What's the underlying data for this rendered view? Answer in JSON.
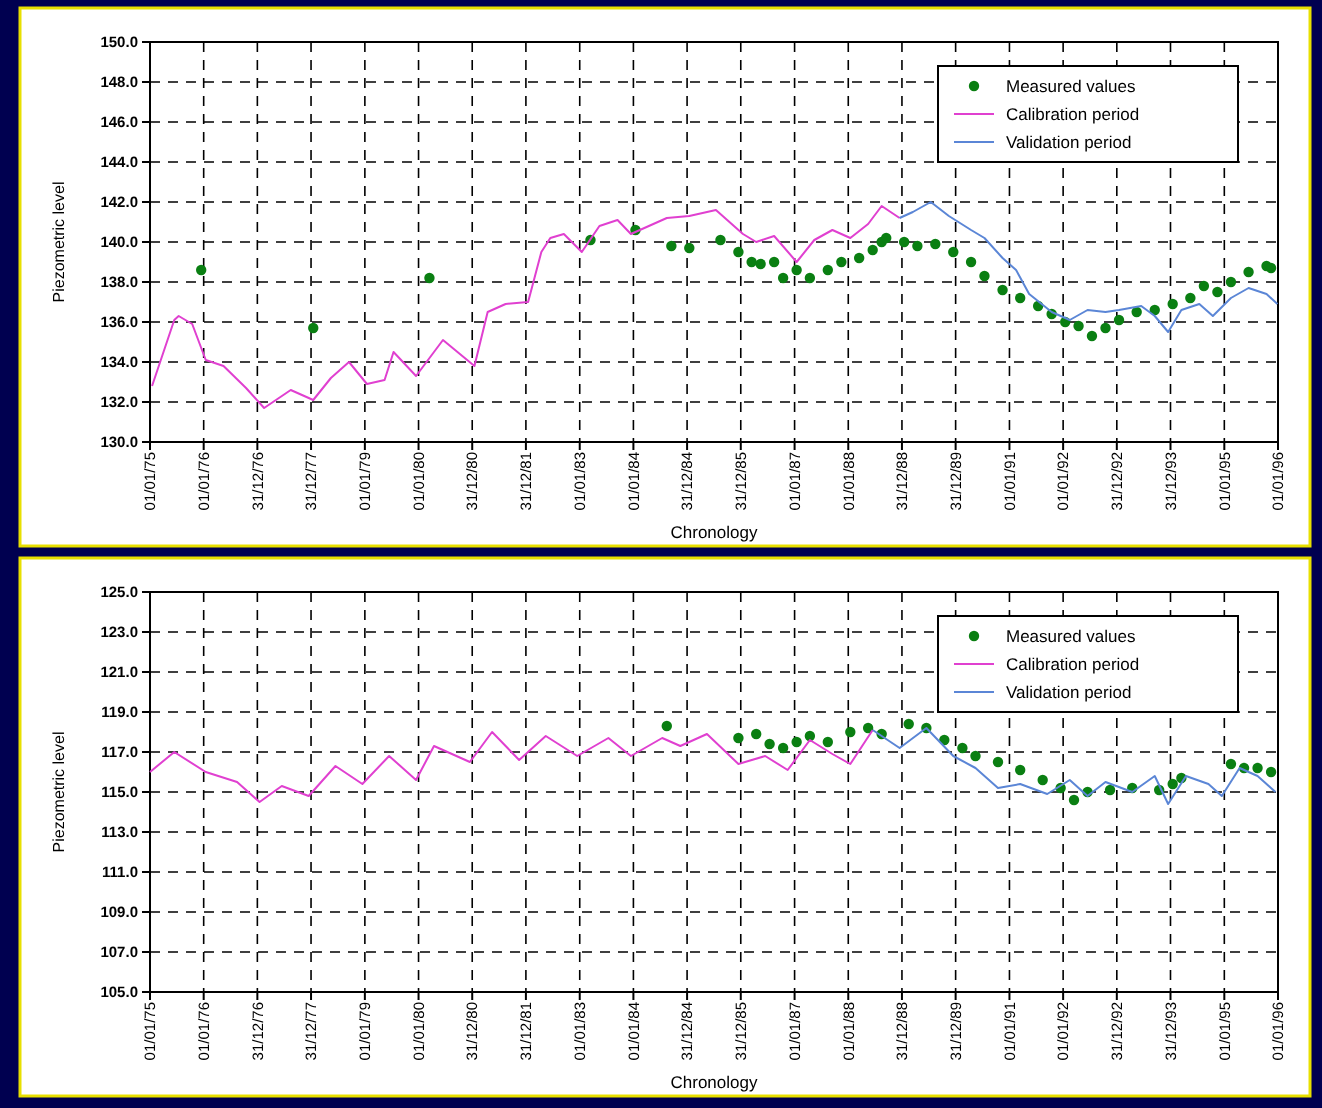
{
  "chart_data": [
    {
      "type": "line",
      "xlabel": "Chronology",
      "ylabel": "Piezometric level",
      "xlim": [
        "1975-01-01",
        "1996-01-01"
      ],
      "ylim": [
        130,
        150
      ],
      "yticks": [
        {
          "value": 130,
          "label": "130.0"
        },
        {
          "value": 132,
          "label": "132.0"
        },
        {
          "value": 134,
          "label": "134.0"
        },
        {
          "value": 136,
          "label": "136.0"
        },
        {
          "value": 138,
          "label": "138.0"
        },
        {
          "value": 140,
          "label": "140.0"
        },
        {
          "value": 142,
          "label": "142.0"
        },
        {
          "value": 144,
          "label": "144.0"
        },
        {
          "value": 146,
          "label": "146.0"
        },
        {
          "value": 148,
          "label": "148.0"
        },
        {
          "value": 150,
          "label": "150.0"
        }
      ],
      "xticks": [
        {
          "value": "1975-01-01",
          "label": "01/01/75"
        },
        {
          "value": "1976-01-01",
          "label": "01/01/76"
        },
        {
          "value": "1976-12-31",
          "label": "31/12/76"
        },
        {
          "value": "1977-12-31",
          "label": "31/12/77"
        },
        {
          "value": "1979-01-01",
          "label": "01/01/79"
        },
        {
          "value": "1980-01-01",
          "label": "01/01/80"
        },
        {
          "value": "1980-12-31",
          "label": "31/12/80"
        },
        {
          "value": "1981-12-31",
          "label": "31/12/81"
        },
        {
          "value": "1983-01-01",
          "label": "01/01/83"
        },
        {
          "value": "1984-01-01",
          "label": "01/01/84"
        },
        {
          "value": "1984-12-31",
          "label": "31/12/84"
        },
        {
          "value": "1985-12-31",
          "label": "31/12/85"
        },
        {
          "value": "1987-01-01",
          "label": "01/01/87"
        },
        {
          "value": "1988-01-01",
          "label": "01/01/88"
        },
        {
          "value": "1988-12-31",
          "label": "31/12/88"
        },
        {
          "value": "1989-12-31",
          "label": "31/12/89"
        },
        {
          "value": "1991-01-01",
          "label": "01/01/91"
        },
        {
          "value": "1992-01-01",
          "label": "01/01/92"
        },
        {
          "value": "1992-12-31",
          "label": "31/12/92"
        },
        {
          "value": "1993-12-31",
          "label": "31/12/93"
        },
        {
          "value": "1995-01-01",
          "label": "01/01/95"
        },
        {
          "value": "1996-01-01",
          "label": "01/01/96"
        }
      ],
      "grid": true,
      "legend": "top right",
      "series": [
        {
          "name": "Measured values",
          "type": "scatter",
          "color": "#0a7f12",
          "x": [
            "1975-12",
            "1978-01",
            "1980-03",
            "1983-03",
            "1984-01",
            "1984-09",
            "1985-01",
            "1985-08",
            "1985-12",
            "1986-03",
            "1986-05",
            "1986-08",
            "1986-10",
            "1987-01",
            "1987-04",
            "1987-08",
            "1987-11",
            "1988-03",
            "1988-06",
            "1988-08",
            "1988-09",
            "1989-01",
            "1989-04",
            "1989-08",
            "1989-12",
            "1990-04",
            "1990-07",
            "1990-11",
            "1991-03",
            "1991-07",
            "1991-10",
            "1992-01",
            "1992-04",
            "1992-07",
            "1992-10",
            "1993-01",
            "1993-05",
            "1993-09",
            "1994-01",
            "1994-05",
            "1994-08",
            "1994-11",
            "1995-02",
            "1995-06",
            "1995-10",
            "1995-11"
          ],
          "values": [
            138.6,
            135.7,
            138.2,
            140.1,
            140.6,
            139.8,
            139.7,
            140.1,
            139.5,
            139.0,
            138.9,
            139.0,
            138.2,
            138.6,
            138.2,
            138.6,
            139.0,
            139.2,
            139.6,
            140.0,
            140.2,
            140.0,
            139.8,
            139.9,
            139.5,
            139.0,
            138.3,
            137.6,
            137.2,
            136.8,
            136.4,
            136.0,
            135.8,
            135.3,
            135.7,
            136.1,
            136.5,
            136.6,
            136.9,
            137.2,
            137.8,
            137.5,
            138.0,
            138.5,
            138.8,
            138.7
          ]
        },
        {
          "name": "Calibration period",
          "color": "#e040d0",
          "x": [
            "1975-01",
            "1975-06",
            "1975-07",
            "1975-10",
            "1976-01",
            "1976-05",
            "1976-10",
            "1977-02",
            "1977-08",
            "1978-01",
            "1978-05",
            "1978-09",
            "1979-01",
            "1979-05",
            "1979-07",
            "1979-12",
            "1980-06",
            "1981-01",
            "1981-04",
            "1981-08",
            "1982-01",
            "1982-04",
            "1982-06",
            "1982-09",
            "1983-01",
            "1983-05",
            "1983-09",
            "1983-12",
            "1984-08",
            "1985-01",
            "1985-07",
            "1986-01",
            "1986-04",
            "1986-08",
            "1987-01",
            "1987-05",
            "1987-09",
            "1988-01",
            "1988-05",
            "1988-08",
            "1988-12"
          ],
          "values": [
            132.8,
            136.1,
            136.3,
            135.9,
            134.1,
            133.8,
            132.7,
            131.7,
            132.6,
            132.1,
            133.2,
            134.0,
            132.9,
            133.1,
            134.5,
            133.3,
            135.1,
            133.8,
            136.5,
            136.9,
            137.0,
            139.5,
            140.2,
            140.4,
            139.5,
            140.8,
            141.1,
            140.4,
            141.2,
            141.3,
            141.6,
            140.4,
            140.0,
            140.3,
            139.0,
            140.1,
            140.6,
            140.2,
            140.9,
            141.8,
            141.2
          ]
        },
        {
          "name": "Validation period",
          "color": "#5b86d6",
          "x": [
            "1988-12",
            "1989-03",
            "1989-07",
            "1989-11",
            "1990-04",
            "1990-07",
            "1990-11",
            "1991-02",
            "1991-05",
            "1991-10",
            "1992-02",
            "1992-06",
            "1992-10",
            "1993-01",
            "1993-06",
            "1993-09",
            "1993-12",
            "1994-03",
            "1994-07",
            "1994-10",
            "1995-02",
            "1995-06",
            "1995-10",
            "1995-12-28"
          ],
          "values": [
            141.2,
            141.5,
            142.0,
            141.3,
            140.6,
            140.2,
            139.2,
            138.6,
            137.4,
            136.5,
            136.1,
            136.6,
            136.5,
            136.6,
            136.8,
            136.3,
            135.5,
            136.6,
            136.9,
            136.3,
            137.2,
            137.7,
            137.4,
            136.9
          ]
        }
      ]
    },
    {
      "type": "line",
      "xlabel": "Chronology",
      "ylabel": "Piezometric level",
      "xlim": [
        "1975-01-01",
        "1996-01-01"
      ],
      "ylim": [
        105,
        125
      ],
      "yticks": [
        {
          "value": 105,
          "label": "105.0"
        },
        {
          "value": 107,
          "label": "107.0"
        },
        {
          "value": 109,
          "label": "109.0"
        },
        {
          "value": 111,
          "label": "111.0"
        },
        {
          "value": 113,
          "label": "113.0"
        },
        {
          "value": 115,
          "label": "115.0"
        },
        {
          "value": 117,
          "label": "117.0"
        },
        {
          "value": 119,
          "label": "119.0"
        },
        {
          "value": 121,
          "label": "121.0"
        },
        {
          "value": 123,
          "label": "123.0"
        },
        {
          "value": 125,
          "label": "125.0"
        }
      ],
      "xticks": [
        {
          "value": "1975-01-01",
          "label": "01/01/75"
        },
        {
          "value": "1976-01-01",
          "label": "01/01/76"
        },
        {
          "value": "1976-12-31",
          "label": "31/12/76"
        },
        {
          "value": "1977-12-31",
          "label": "31/12/77"
        },
        {
          "value": "1979-01-01",
          "label": "01/01/79"
        },
        {
          "value": "1980-01-01",
          "label": "01/01/80"
        },
        {
          "value": "1980-12-31",
          "label": "31/12/80"
        },
        {
          "value": "1981-12-31",
          "label": "31/12/81"
        },
        {
          "value": "1983-01-01",
          "label": "01/01/83"
        },
        {
          "value": "1984-01-01",
          "label": "01/01/84"
        },
        {
          "value": "1984-12-31",
          "label": "31/12/84"
        },
        {
          "value": "1985-12-31",
          "label": "31/12/85"
        },
        {
          "value": "1987-01-01",
          "label": "01/01/87"
        },
        {
          "value": "1988-01-01",
          "label": "01/01/88"
        },
        {
          "value": "1988-12-31",
          "label": "31/12/88"
        },
        {
          "value": "1989-12-31",
          "label": "31/12/89"
        },
        {
          "value": "1991-01-01",
          "label": "01/01/91"
        },
        {
          "value": "1992-01-01",
          "label": "01/01/92"
        },
        {
          "value": "1992-12-31",
          "label": "31/12/92"
        },
        {
          "value": "1993-12-31",
          "label": "31/12/93"
        },
        {
          "value": "1995-01-01",
          "label": "01/01/95"
        },
        {
          "value": "1996-01-01",
          "label": "01/01/96"
        }
      ],
      "grid": true,
      "legend": "top right",
      "series": [
        {
          "name": "Measured values",
          "type": "scatter",
          "color": "#0a7f12",
          "x": [
            "1984-08",
            "1985-12",
            "1986-04",
            "1986-07",
            "1986-10",
            "1987-01",
            "1987-04",
            "1987-08",
            "1988-01",
            "1988-05",
            "1988-08",
            "1989-02",
            "1989-06",
            "1989-10",
            "1990-02",
            "1990-05",
            "1990-10",
            "1991-03",
            "1991-08",
            "1991-12",
            "1992-03",
            "1992-06",
            "1992-11",
            "1993-04",
            "1993-10",
            "1994-01",
            "1994-03",
            "1995-02",
            "1995-05",
            "1995-08",
            "1995-11"
          ],
          "values": [
            118.3,
            117.7,
            117.9,
            117.4,
            117.2,
            117.5,
            117.8,
            117.5,
            118.0,
            118.2,
            117.9,
            118.4,
            118.2,
            117.6,
            117.2,
            116.8,
            116.5,
            116.1,
            115.6,
            115.2,
            114.6,
            115.0,
            115.1,
            115.2,
            115.1,
            115.4,
            115.7,
            116.4,
            116.2,
            116.2,
            116.0
          ]
        },
        {
          "name": "Calibration period",
          "color": "#e040d0",
          "x": [
            "1975-01-01",
            "1975-06",
            "1976-01",
            "1976-08",
            "1977-01",
            "1977-06",
            "1977-12",
            "1978-06",
            "1978-12",
            "1979-06",
            "1979-12",
            "1980-04",
            "1980-12",
            "1981-05",
            "1981-11",
            "1982-05",
            "1982-12",
            "1983-07",
            "1983-12",
            "1984-07",
            "1984-11",
            "1985-05",
            "1985-12",
            "1986-06",
            "1986-11",
            "1987-04",
            "1987-09",
            "1988-01",
            "1988-06"
          ],
          "values": [
            116.0,
            117.0,
            116.0,
            115.5,
            114.5,
            115.3,
            114.8,
            116.3,
            115.4,
            116.8,
            115.6,
            117.3,
            116.5,
            118.0,
            116.6,
            117.8,
            116.8,
            117.7,
            116.8,
            117.7,
            117.3,
            117.9,
            116.4,
            116.8,
            116.1,
            117.6,
            116.9,
            116.4,
            118.1
          ]
        },
        {
          "name": "Validation period",
          "color": "#5b86d6",
          "x": [
            "1988-06",
            "1988-12",
            "1989-06",
            "1989-12",
            "1990-05",
            "1990-10",
            "1991-03",
            "1991-09",
            "1992-02",
            "1992-06",
            "1992-10",
            "1993-04",
            "1993-09",
            "1993-12",
            "1994-04",
            "1994-09",
            "1994-12",
            "1995-04",
            "1995-08",
            "1995-12"
          ],
          "values": [
            118.1,
            117.2,
            118.2,
            116.8,
            116.2,
            115.2,
            115.4,
            114.9,
            115.6,
            114.8,
            115.5,
            115.0,
            115.8,
            114.4,
            115.8,
            115.4,
            114.8,
            116.2,
            115.8,
            115.0
          ]
        }
      ]
    }
  ]
}
